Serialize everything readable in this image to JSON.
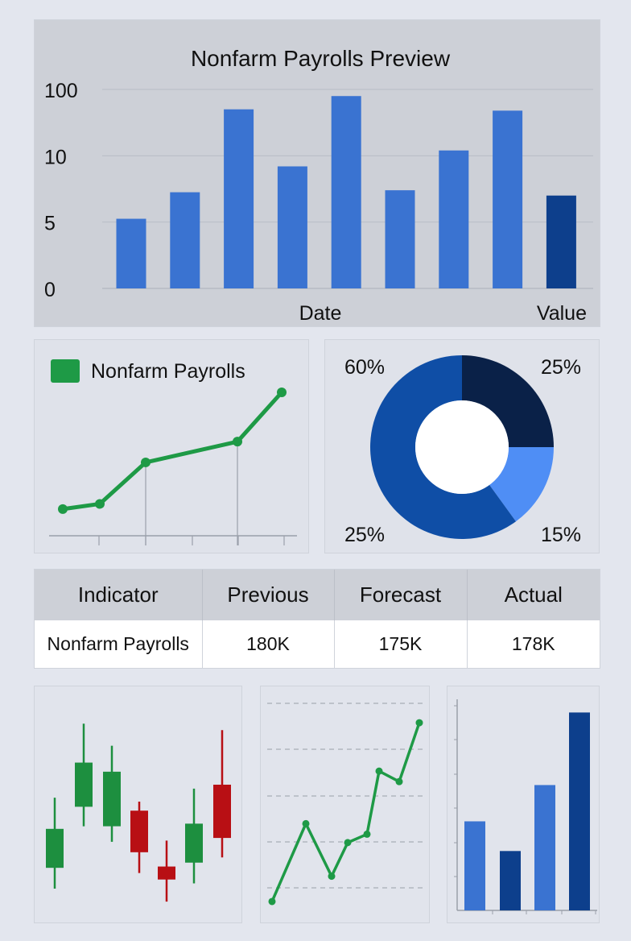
{
  "chart_data": [
    {
      "type": "bar",
      "title": "Nonfarm Payrolls Preview",
      "xlabel": "Date",
      "ylabel": "Value",
      "yticks": [
        "0",
        "5",
        "10",
        "100"
      ],
      "categories": [
        "",
        "",
        "",
        "",
        "",
        "",
        "",
        "",
        ""
      ],
      "values": [
        1.05,
        1.45,
        2.7,
        1.84,
        2.9,
        1.48,
        2.08,
        2.68,
        1.4
      ],
      "colors": [
        "#3a73d1",
        "#3a73d1",
        "#3a73d1",
        "#3a73d1",
        "#3a73d1",
        "#3a73d1",
        "#3a73d1",
        "#3a73d1",
        "#0d3f8c"
      ],
      "ylim": [
        0,
        3
      ],
      "grid": true
    },
    {
      "type": "line",
      "legend": "Nonfarm Payrolls",
      "legend_color": "#1e9a46",
      "values": [
        10,
        14,
        46,
        62,
        100
      ],
      "ylim": [
        0,
        100
      ]
    },
    {
      "type": "pie",
      "labels": [
        "25%",
        "15%",
        "60%"
      ],
      "values": [
        25,
        15,
        60
      ],
      "colors": [
        "#0a2148",
        "#4f8ef5",
        "#0f4ea6"
      ],
      "corner_labels": {
        "top_left": "60%",
        "top_right": "25%",
        "bottom_left": "25%",
        "bottom_right": "15%"
      }
    },
    {
      "type": "table",
      "columns": [
        "Indicator",
        "Previous",
        "Forecast",
        "Actual"
      ],
      "rows": [
        [
          "Nonfarm Payrolls",
          "180K",
          "175K",
          "178K"
        ]
      ]
    },
    {
      "type": "candlestick",
      "candles": [
        {
          "open": 34,
          "close": 64,
          "high": 88,
          "low": 18,
          "up": true
        },
        {
          "open": 81,
          "close": 115,
          "high": 145,
          "low": 66,
          "up": true
        },
        {
          "open": 66,
          "close": 108,
          "high": 128,
          "low": 54,
          "up": true
        },
        {
          "open": 78,
          "close": 46,
          "high": 85,
          "low": 30,
          "up": false
        },
        {
          "open": 35,
          "close": 25,
          "high": 55,
          "low": 8,
          "up": false
        },
        {
          "open": 38,
          "close": 68,
          "high": 95,
          "low": 22,
          "up": true
        },
        {
          "open": 98,
          "close": 57,
          "high": 140,
          "low": 42,
          "up": false
        }
      ],
      "ylim": [
        0,
        160
      ],
      "up_color": "#1d8f3f",
      "down_color": "#b80f14"
    },
    {
      "type": "line",
      "values": [
        5,
        42,
        17,
        33,
        37,
        67,
        62,
        90
      ],
      "ylim": [
        0,
        100
      ],
      "color": "#1e9a46"
    },
    {
      "type": "bar",
      "values": [
        27,
        18,
        38,
        60
      ],
      "colors": [
        "#3a73d1",
        "#0d3f8c",
        "#3a73d1",
        "#0d3f8c"
      ],
      "ylim": [
        0,
        64
      ]
    }
  ]
}
